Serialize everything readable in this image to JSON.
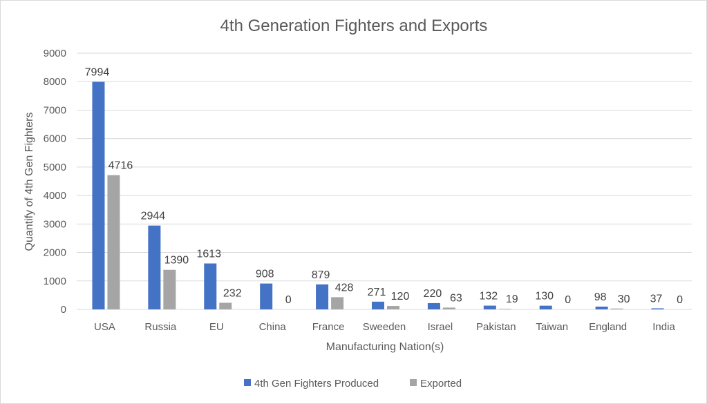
{
  "chart_data": {
    "type": "bar",
    "title": "4th Generation  Fighters and Exports",
    "xlabel": "Manufacturing Nation(s)",
    "ylabel": "Quantify of 4th Gen Fighters",
    "categories": [
      "USA",
      "Russia",
      "EU",
      "China",
      "France",
      "Sweeden",
      "Israel",
      "Pakistan",
      "Taiwan",
      "England",
      "India"
    ],
    "series": [
      {
        "name": "4th Gen Fighters Produced",
        "color": "#4472c4",
        "values": [
          7994,
          2944,
          1613,
          908,
          879,
          271,
          220,
          132,
          130,
          98,
          37
        ]
      },
      {
        "name": "Exported",
        "color": "#a5a5a5",
        "values": [
          4716,
          1390,
          232,
          0,
          428,
          120,
          63,
          19,
          0,
          30,
          0
        ]
      }
    ],
    "ylim": [
      0,
      9000
    ],
    "yticks": [
      0,
      1000,
      2000,
      3000,
      4000,
      5000,
      6000,
      7000,
      8000,
      9000
    ],
    "grid": true,
    "legend_position": "bottom"
  }
}
